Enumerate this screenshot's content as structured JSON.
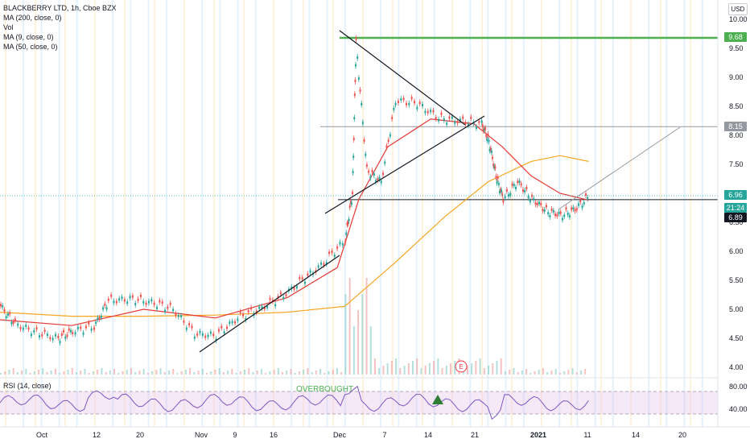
{
  "chart_data": {
    "type": "candlestick",
    "title": "BLACKBERRY LTD, 1h, Cboe BZX",
    "currency": "USD",
    "indicators": [
      "MA (200, close, 0)",
      "Vol",
      "MA (9, close, 0)",
      "MA (50, close, 0)"
    ],
    "y_ticks": [
      "10.00",
      "9.50",
      "9.00",
      "8.50",
      "8.00",
      "7.50",
      "7.00",
      "6.50",
      "6.00",
      "5.50",
      "5.00",
      "4.50",
      "4.00"
    ],
    "ylim": [
      4.0,
      10.0
    ],
    "x_ticks": [
      "Oct",
      "12",
      "20",
      "Nov",
      "9",
      "16",
      "Dec",
      "7",
      "14",
      "21",
      "2021",
      "11",
      "14",
      "20"
    ],
    "price_badges": [
      {
        "label": "9.68",
        "value": 9.68,
        "color": "#4caf50"
      },
      {
        "label": "8.15",
        "value": 8.15,
        "color": "#9598a1"
      },
      {
        "label": "6.96",
        "value": 6.96,
        "color": "#26a69a"
      },
      {
        "label": "21:24",
        "value": 6.8,
        "color": "#26a69a"
      },
      {
        "label": "6.89",
        "value": 6.64,
        "color": "#131722"
      }
    ],
    "horizontal_levels": [
      {
        "value": 9.68,
        "color": "#4caf50"
      },
      {
        "value": 8.15,
        "color": "#9598a1"
      },
      {
        "value": 6.89,
        "color": "#131722"
      }
    ],
    "price_series": [
      {
        "x": 0.0,
        "y": 5.05
      },
      {
        "x": 0.02,
        "y": 4.75
      },
      {
        "x": 0.05,
        "y": 4.6
      },
      {
        "x": 0.08,
        "y": 4.5
      },
      {
        "x": 0.1,
        "y": 4.62
      },
      {
        "x": 0.13,
        "y": 4.7
      },
      {
        "x": 0.15,
        "y": 5.15
      },
      {
        "x": 0.18,
        "y": 5.18
      },
      {
        "x": 0.21,
        "y": 5.12
      },
      {
        "x": 0.24,
        "y": 5.0
      },
      {
        "x": 0.27,
        "y": 4.58
      },
      {
        "x": 0.3,
        "y": 4.55
      },
      {
        "x": 0.33,
        "y": 4.85
      },
      {
        "x": 0.36,
        "y": 5.0
      },
      {
        "x": 0.39,
        "y": 5.2
      },
      {
        "x": 0.42,
        "y": 5.5
      },
      {
        "x": 0.45,
        "y": 5.8
      },
      {
        "x": 0.48,
        "y": 6.2
      },
      {
        "x": 0.49,
        "y": 7.0
      },
      {
        "x": 0.495,
        "y": 9.6
      },
      {
        "x": 0.51,
        "y": 7.4
      },
      {
        "x": 0.53,
        "y": 7.2
      },
      {
        "x": 0.55,
        "y": 8.6
      },
      {
        "x": 0.58,
        "y": 8.55
      },
      {
        "x": 0.61,
        "y": 8.3
      },
      {
        "x": 0.64,
        "y": 8.25
      },
      {
        "x": 0.67,
        "y": 8.2
      },
      {
        "x": 0.68,
        "y": 7.9
      },
      {
        "x": 0.69,
        "y": 7.3
      },
      {
        "x": 0.7,
        "y": 6.9
      },
      {
        "x": 0.72,
        "y": 7.2
      },
      {
        "x": 0.74,
        "y": 6.9
      },
      {
        "x": 0.76,
        "y": 6.7
      },
      {
        "x": 0.78,
        "y": 6.62
      },
      {
        "x": 0.8,
        "y": 6.72
      },
      {
        "x": 0.82,
        "y": 6.96
      }
    ],
    "ma_50": [
      {
        "x": 0.0,
        "y": 4.82
      },
      {
        "x": 0.1,
        "y": 4.72
      },
      {
        "x": 0.2,
        "y": 5.0
      },
      {
        "x": 0.3,
        "y": 4.85
      },
      {
        "x": 0.4,
        "y": 5.2
      },
      {
        "x": 0.47,
        "y": 5.72
      },
      {
        "x": 0.5,
        "y": 6.9
      },
      {
        "x": 0.54,
        "y": 7.8
      },
      {
        "x": 0.6,
        "y": 8.28
      },
      {
        "x": 0.66,
        "y": 8.2
      },
      {
        "x": 0.7,
        "y": 7.8
      },
      {
        "x": 0.74,
        "y": 7.3
      },
      {
        "x": 0.78,
        "y": 7.0
      },
      {
        "x": 0.82,
        "y": 6.88
      }
    ],
    "ma_200": [
      {
        "x": 0.0,
        "y": 4.95
      },
      {
        "x": 0.1,
        "y": 4.88
      },
      {
        "x": 0.2,
        "y": 4.88
      },
      {
        "x": 0.3,
        "y": 4.9
      },
      {
        "x": 0.4,
        "y": 4.95
      },
      {
        "x": 0.48,
        "y": 5.05
      },
      {
        "x": 0.55,
        "y": 5.8
      },
      {
        "x": 0.62,
        "y": 6.6
      },
      {
        "x": 0.68,
        "y": 7.2
      },
      {
        "x": 0.74,
        "y": 7.55
      },
      {
        "x": 0.78,
        "y": 7.65
      },
      {
        "x": 0.82,
        "y": 7.55
      }
    ],
    "rsi": {
      "label": "RSI (14, close)",
      "y_ticks": [
        "80.00",
        "40.00"
      ],
      "upper": 70,
      "lower": 30,
      "annotation": "OVERBOUGHT"
    },
    "earnings_marker": "E"
  }
}
